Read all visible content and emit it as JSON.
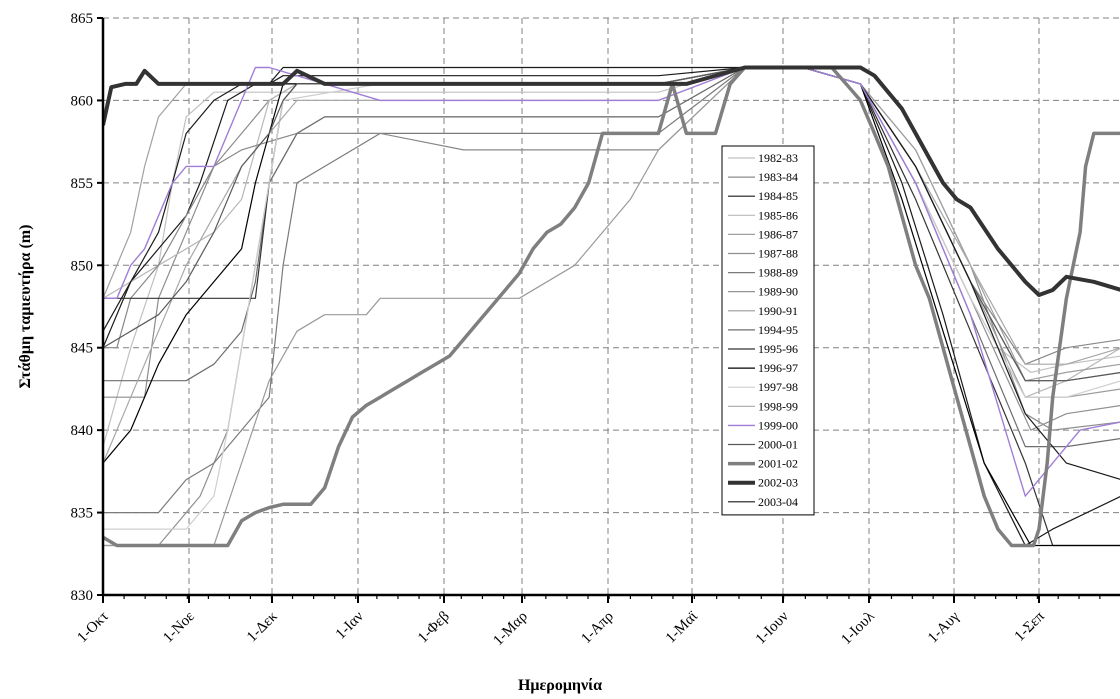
{
  "chart_data": {
    "type": "line",
    "xlabel": "Ημερομηνία",
    "ylabel": "Στάθμη ταμιευτήρα (m)",
    "ylim": [
      830,
      865
    ],
    "yticks": [
      830,
      835,
      840,
      845,
      850,
      855,
      860,
      865
    ],
    "x_tick_labels": [
      "1-Οκτ",
      "1-Νοε",
      "1-Δεκ",
      "1-Ιαν",
      "1-Φεβ",
      "1-Μαρ",
      "1-Απρ",
      "1-Μαϊ",
      "1-Ιουν",
      "1-Ιουλ",
      "1-Αυγ",
      "1-Σεπ"
    ],
    "x_tick_days": [
      0,
      31,
      61,
      92,
      123,
      151,
      182,
      212,
      243,
      273,
      304,
      335
    ],
    "xlim": [
      0,
      365
    ],
    "grid": true,
    "legend_position": "right",
    "series": [
      {
        "name": "1982-83",
        "color": "#c0c0c0",
        "width": 1.2,
        "x": [
          0,
          10,
          20,
          25,
          30,
          40,
          50,
          60,
          70,
          100,
          150,
          200,
          230,
          250,
          270,
          290,
          310,
          320,
          332,
          345,
          365
        ],
        "y": [
          839,
          845,
          850,
          855,
          859,
          860.5,
          860.5,
          860.5,
          860.5,
          860.5,
          860.5,
          860.5,
          862,
          862,
          861,
          856,
          849,
          845,
          843.5,
          844,
          844.5
        ]
      },
      {
        "name": "1983-84",
        "color": "#8c8c8c",
        "width": 1.2,
        "x": [
          0,
          8,
          15,
          20,
          30,
          40,
          50,
          60,
          70,
          100,
          150,
          200,
          230,
          250,
          270,
          290,
          310,
          330,
          340,
          365
        ],
        "y": [
          842,
          842,
          842,
          848,
          852,
          856,
          858,
          860,
          861,
          861,
          861,
          861,
          862,
          862,
          861,
          857,
          850,
          841,
          840,
          840.5
        ]
      },
      {
        "name": "1984-85",
        "color": "#1a1a1a",
        "width": 1.2,
        "x": [
          0,
          10,
          20,
          30,
          35,
          45,
          55,
          60,
          65,
          100,
          150,
          200,
          230,
          250,
          270,
          285,
          300,
          315,
          330,
          340,
          365
        ],
        "y": [
          845,
          849,
          851,
          853,
          855,
          860,
          861,
          861,
          862,
          862,
          862,
          862,
          862,
          862,
          861,
          855,
          847,
          838,
          833,
          834,
          836
        ]
      },
      {
        "name": "1985-86",
        "color": "#b8b8b8",
        "width": 1.2,
        "x": [
          0,
          10,
          20,
          30,
          40,
          50,
          55,
          60,
          70,
          100,
          150,
          200,
          230,
          250,
          270,
          290,
          310,
          330,
          345,
          365
        ],
        "y": [
          848,
          849,
          850,
          851,
          852,
          854,
          857,
          860,
          861,
          861,
          861,
          861,
          862,
          862,
          861,
          855,
          848,
          842,
          843,
          845
        ]
      },
      {
        "name": "1986-87",
        "color": "#a0a0a0",
        "width": 1.2,
        "x": [
          0,
          10,
          15,
          20,
          30,
          40,
          50,
          55,
          60,
          100,
          150,
          200,
          230,
          250,
          270,
          290,
          310,
          330,
          345,
          365
        ],
        "y": [
          848,
          852,
          856,
          859,
          861,
          861,
          861,
          861,
          861,
          861,
          861,
          861,
          862,
          862,
          861,
          857,
          850,
          843,
          843.5,
          844
        ]
      },
      {
        "name": "1987-88",
        "color": "#909090",
        "width": 1.2,
        "x": [
          0,
          20,
          35,
          45,
          50,
          55,
          60,
          70,
          80,
          100,
          150,
          200,
          230,
          250,
          270,
          290,
          310,
          332,
          345,
          365
        ],
        "y": [
          833,
          833,
          836,
          840,
          845,
          850,
          855,
          858,
          859,
          859,
          859,
          859,
          862,
          862,
          861,
          855,
          848,
          840,
          841,
          841.5
        ]
      },
      {
        "name": "1988-89",
        "color": "#7a7a7a",
        "width": 1.2,
        "x": [
          0,
          20,
          30,
          40,
          50,
          60,
          65,
          70,
          100,
          130,
          150,
          200,
          230,
          250,
          270,
          290,
          310,
          330,
          345,
          365
        ],
        "y": [
          835,
          835,
          837,
          838,
          840,
          842,
          850,
          855,
          858,
          858,
          858,
          858,
          862,
          862,
          861,
          856,
          849,
          843,
          843,
          843.5
        ]
      },
      {
        "name": "1989-90",
        "color": "#888888",
        "width": 1.2,
        "x": [
          0,
          5,
          10,
          20,
          30,
          40,
          50,
          60,
          70,
          80,
          100,
          130,
          150,
          200,
          230,
          250,
          270,
          290,
          310,
          330,
          345,
          365
        ],
        "y": [
          845,
          845,
          848,
          850,
          853,
          856,
          857,
          857.5,
          858,
          858,
          858,
          857,
          857,
          857,
          862,
          862,
          861,
          856,
          849,
          844,
          845,
          845.5
        ]
      },
      {
        "name": "1990-91",
        "color": "#9a9a9a",
        "width": 1.2,
        "x": [
          0,
          40,
          50,
          60,
          70,
          80,
          90,
          95,
          100,
          110,
          150,
          170,
          190,
          200,
          230,
          250,
          270,
          290,
          310,
          330,
          345,
          365
        ],
        "y": [
          833,
          833,
          838,
          843,
          846,
          847,
          847,
          847,
          848,
          848,
          848,
          850,
          854,
          857,
          862,
          862,
          861,
          856,
          849,
          842,
          842,
          842.5
        ]
      },
      {
        "name": "1994-95",
        "color": "#6e6e6e",
        "width": 1.2,
        "x": [
          0,
          30,
          40,
          50,
          55,
          60,
          70,
          80,
          100,
          150,
          200,
          230,
          250,
          270,
          290,
          310,
          330,
          345,
          365
        ],
        "y": [
          843,
          843,
          844,
          846,
          849,
          855,
          858,
          859,
          859,
          859,
          859,
          862,
          862,
          861,
          855,
          847,
          839,
          839,
          839.5
        ]
      },
      {
        "name": "1995-96",
        "color": "#333333",
        "width": 1.2,
        "x": [
          0,
          10,
          15,
          20,
          30,
          45,
          55,
          60,
          65,
          70,
          100,
          150,
          200,
          230,
          250,
          270,
          290,
          310,
          330,
          340,
          365
        ],
        "y": [
          848,
          848,
          848,
          848,
          848,
          848,
          848,
          855,
          860,
          861,
          861,
          861,
          861,
          862,
          862,
          861,
          854,
          846,
          838,
          833,
          833
        ]
      },
      {
        "name": "1996-97",
        "color": "#000000",
        "width": 1.2,
        "x": [
          0,
          10,
          20,
          30,
          40,
          50,
          55,
          60,
          65,
          100,
          150,
          200,
          230,
          250,
          270,
          285,
          300,
          315,
          332,
          345,
          365
        ],
        "y": [
          838,
          840,
          844,
          847,
          849,
          851,
          855,
          858,
          861,
          861,
          861,
          861,
          862,
          862,
          861,
          854,
          846,
          838,
          833,
          833,
          833
        ]
      },
      {
        "name": "1997-98",
        "color": "#cfcfcf",
        "width": 1.2,
        "x": [
          0,
          5,
          10,
          30,
          40,
          45,
          50,
          55,
          60,
          65,
          100,
          150,
          200,
          230,
          250,
          270,
          290,
          310,
          330,
          345,
          365
        ],
        "y": [
          834,
          834,
          834,
          834,
          836,
          840,
          845,
          850,
          855,
          860,
          861,
          861,
          861,
          862,
          862,
          861,
          855,
          848,
          842,
          842,
          843
        ]
      },
      {
        "name": "1998-99",
        "color": "#a8a8a8",
        "width": 1.2,
        "x": [
          0,
          10,
          20,
          25,
          30,
          40,
          50,
          60,
          70,
          100,
          150,
          200,
          230,
          250,
          270,
          290,
          310,
          330,
          345,
          365
        ],
        "y": [
          838,
          842,
          846,
          848,
          850,
          853,
          856,
          858,
          860,
          860,
          860,
          860,
          862,
          862,
          861,
          856,
          850,
          844,
          844,
          845
        ]
      },
      {
        "name": "1999-00",
        "color": "#a07ed8",
        "width": 1.4,
        "x": [
          0,
          5,
          10,
          15,
          20,
          25,
          30,
          35,
          40,
          45,
          50,
          55,
          60,
          80,
          100,
          150,
          200,
          230,
          250,
          270,
          290,
          310,
          330,
          340,
          350,
          365
        ],
        "y": [
          848,
          848,
          850,
          851,
          853,
          855,
          856,
          856,
          856,
          858,
          860,
          862,
          862,
          861,
          860,
          860,
          860,
          862,
          862,
          861,
          855,
          847,
          836,
          838,
          840,
          840.5
        ]
      },
      {
        "name": "2000-01",
        "color": "#5a5a5a",
        "width": 1.2,
        "x": [
          0,
          10,
          20,
          30,
          40,
          50,
          60,
          65,
          70,
          100,
          150,
          200,
          230,
          250,
          270,
          290,
          310,
          330,
          345,
          365
        ],
        "y": [
          845,
          846,
          847,
          849,
          852,
          856,
          858,
          860,
          861,
          861,
          861,
          861,
          862,
          862,
          861,
          856,
          849,
          843,
          843,
          843.5
        ]
      },
      {
        "name": "2001-02",
        "color": "#7f7f7f",
        "width": 3.5,
        "x": [
          0,
          5,
          10,
          20,
          30,
          40,
          45,
          50,
          55,
          60,
          65,
          70,
          75,
          80,
          85,
          90,
          95,
          100,
          105,
          110,
          115,
          120,
          125,
          130,
          135,
          140,
          145,
          150,
          155,
          160,
          165,
          170,
          175,
          180,
          185,
          190,
          195,
          200,
          205,
          210,
          215,
          220,
          225,
          230,
          235,
          240,
          245,
          250,
          255,
          260,
          265,
          270,
          275,
          280,
          285,
          290,
          295,
          300,
          305,
          310,
          315,
          320,
          325,
          330,
          333,
          335,
          338,
          340,
          345,
          350,
          352,
          355,
          358,
          360,
          365
        ],
        "y": [
          833.5,
          833,
          833,
          833,
          833,
          833,
          833,
          834.5,
          835,
          835.3,
          835.5,
          835.5,
          835.5,
          836.5,
          839,
          840.8,
          841.5,
          842,
          842.5,
          843,
          843.5,
          844,
          844.5,
          845.5,
          846.5,
          847.5,
          848.5,
          849.5,
          851,
          852,
          852.5,
          853.5,
          855,
          858,
          858,
          858,
          858,
          858,
          861,
          858,
          858,
          858,
          861,
          862,
          862,
          862,
          862,
          862,
          862,
          862,
          861,
          860,
          858,
          856,
          853,
          850,
          848,
          845,
          842,
          839,
          836,
          834,
          833,
          833,
          833,
          834,
          838,
          842,
          848,
          852,
          856,
          858,
          858,
          858,
          858
        ]
      },
      {
        "name": "2002-03",
        "color": "#333333",
        "width": 4,
        "x": [
          0,
          3,
          8,
          12,
          15,
          20,
          25,
          30,
          50,
          65,
          70,
          80,
          100,
          150,
          180,
          200,
          210,
          230,
          250,
          270,
          275,
          280,
          285,
          290,
          295,
          300,
          305,
          310,
          320,
          330,
          335,
          340,
          345,
          355,
          365
        ],
        "y": [
          858.5,
          860.8,
          861,
          861,
          861.8,
          861,
          861,
          861,
          861,
          861,
          861.8,
          861,
          861,
          861,
          861,
          861,
          861,
          862,
          862,
          862,
          861.5,
          860.5,
          859.5,
          858,
          856.5,
          855,
          854,
          853.5,
          851,
          849,
          848.2,
          848.5,
          849.3,
          849,
          848.5
        ]
      },
      {
        "name": "2003-04",
        "color": "#1a1a1a",
        "width": 1.2,
        "x": [
          0,
          10,
          20,
          25,
          30,
          40,
          50,
          60,
          65,
          70,
          100,
          150,
          200,
          230,
          250,
          270,
          290,
          310,
          330,
          345,
          365
        ],
        "y": [
          846,
          849,
          852,
          855,
          858,
          860,
          861,
          861,
          861.5,
          861.5,
          861.5,
          861.5,
          861.5,
          862,
          862,
          861,
          856,
          849,
          841,
          838,
          837
        ]
      }
    ]
  }
}
